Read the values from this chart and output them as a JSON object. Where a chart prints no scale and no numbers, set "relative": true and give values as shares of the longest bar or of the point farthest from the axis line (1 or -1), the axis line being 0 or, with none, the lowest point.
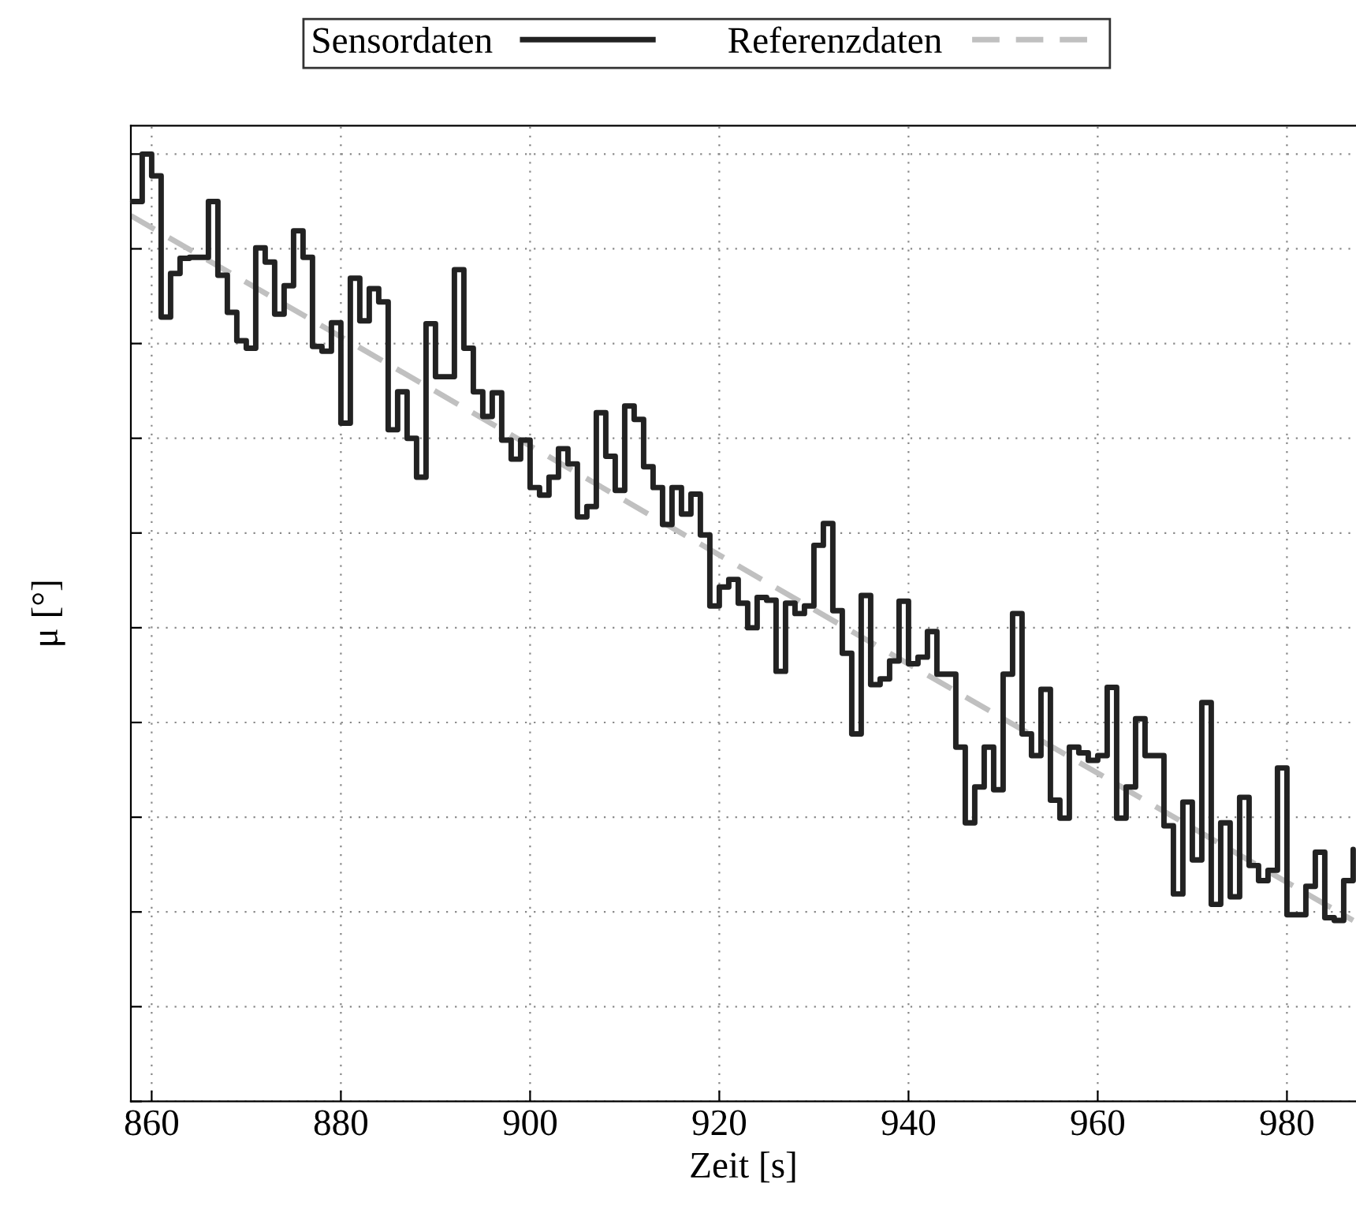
{
  "chart_data": {
    "type": "step",
    "relative": true,
    "xlabel": "Zeit [s]",
    "ylabel": "μ [°]",
    "xlim": [
      857.8,
      987.3
    ],
    "xticks": [
      860,
      880,
      900,
      920,
      940,
      960,
      980
    ],
    "tick_labels": "x",
    "grid": true,
    "legend": "top",
    "series": [
      {
        "name": "Sensordaten",
        "color": "#222222",
        "line_style": "solid",
        "x": [
          858,
          859,
          860,
          861,
          862,
          863,
          864,
          865,
          866,
          867,
          868,
          869,
          870,
          871,
          872,
          873,
          874,
          875,
          876,
          877,
          878,
          879,
          880,
          881,
          882,
          883,
          884,
          885,
          886,
          887,
          888,
          889,
          890,
          891,
          892,
          893,
          894,
          895,
          896,
          897,
          898,
          899,
          900,
          901,
          902,
          903,
          904,
          905,
          906,
          907,
          908,
          909,
          910,
          911,
          912,
          913,
          914,
          915,
          916,
          917,
          918,
          919,
          920,
          921,
          922,
          923,
          924,
          925,
          926,
          927,
          928,
          929,
          930,
          931,
          932,
          933,
          934,
          935,
          936,
          937,
          938,
          939,
          940,
          941,
          942,
          943,
          944,
          945,
          946,
          947,
          948,
          949,
          950,
          951,
          952,
          953,
          954,
          955,
          956,
          957,
          958,
          959,
          960,
          961,
          962,
          963,
          964,
          965,
          966,
          967,
          968,
          969,
          970,
          971,
          972,
          973,
          974,
          975,
          976,
          977,
          978,
          979,
          980,
          981,
          982,
          983,
          984,
          985,
          986,
          987
        ],
        "values": [
          0.95,
          1.0,
          0.977,
          0.828,
          0.874,
          0.89,
          0.891,
          0.891,
          0.95,
          0.872,
          0.833,
          0.803,
          0.795,
          0.901,
          0.886,
          0.831,
          0.861,
          0.919,
          0.891,
          0.797,
          0.792,
          0.822,
          0.716,
          0.869,
          0.824,
          0.858,
          0.844,
          0.709,
          0.749,
          0.7,
          0.659,
          0.821,
          0.765,
          0.765,
          0.878,
          0.795,
          0.749,
          0.723,
          0.748,
          0.698,
          0.678,
          0.698,
          0.648,
          0.64,
          0.659,
          0.689,
          0.673,
          0.617,
          0.628,
          0.727,
          0.681,
          0.645,
          0.734,
          0.72,
          0.67,
          0.648,
          0.609,
          0.648,
          0.62,
          0.641,
          0.598,
          0.523,
          0.543,
          0.551,
          0.526,
          0.5,
          0.532,
          0.529,
          0.454,
          0.526,
          0.515,
          0.523,
          0.587,
          0.61,
          0.518,
          0.473,
          0.388,
          0.534,
          0.44,
          0.446,
          0.465,
          0.528,
          0.462,
          0.469,
          0.496,
          0.451,
          0.451,
          0.374,
          0.294,
          0.332,
          0.374,
          0.329,
          0.451,
          0.515,
          0.388,
          0.365,
          0.435,
          0.318,
          0.299,
          0.374,
          0.368,
          0.36,
          0.365,
          0.437,
          0.299,
          0.332,
          0.404,
          0.365,
          0.365,
          0.291,
          0.219,
          0.316,
          0.255,
          0.421,
          0.208,
          0.294,
          0.216,
          0.321,
          0.249,
          0.233,
          0.244,
          0.352,
          0.197,
          0.197,
          0.227,
          0.263,
          0.194,
          0.191,
          0.233,
          0.266
        ]
      },
      {
        "name": "Referenzdaten",
        "type": "line",
        "color": "#c0c0c0",
        "line_style": "dashed",
        "x": [
          857.8,
          987.0
        ],
        "values": [
          0.935,
          0.191
        ]
      }
    ]
  }
}
